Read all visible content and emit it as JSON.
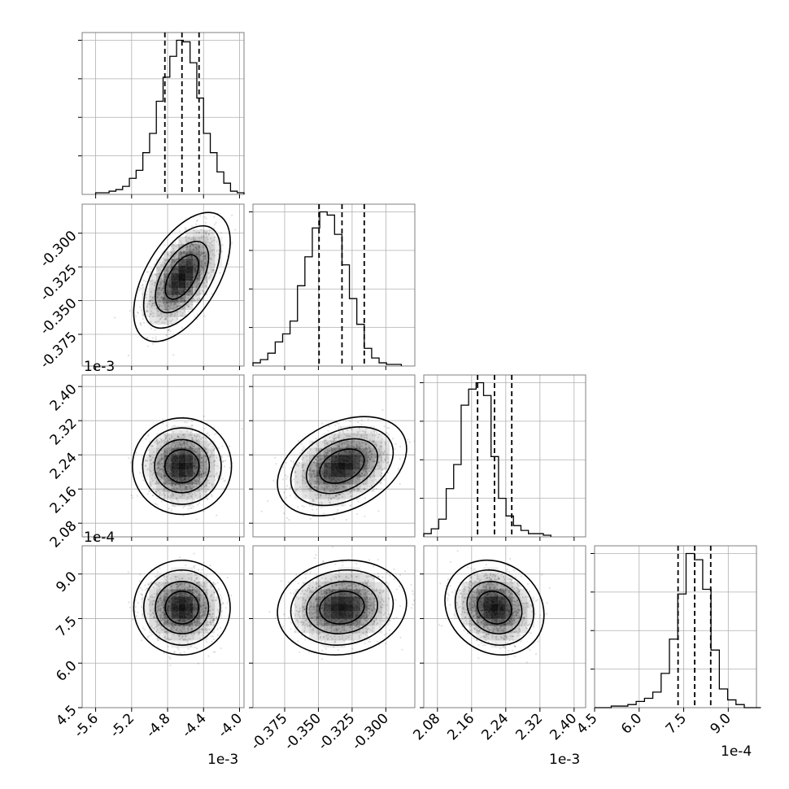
{
  "chart_data": {
    "type": "corner",
    "grid": true,
    "ticks": {
      "p0": [
        "-5.6",
        "-5.2",
        "-4.8",
        "-4.4",
        "-4.0"
      ],
      "p1": [
        "-0.375",
        "-0.350",
        "-0.325",
        "-0.300"
      ],
      "p2": [
        "2.08",
        "2.16",
        "2.24",
        "2.32",
        "2.40"
      ],
      "p3": [
        "4.5",
        "6.0",
        "7.5",
        "9.0"
      ]
    },
    "offsets": {
      "x0": "1e-3",
      "x2": "1e-3",
      "x3": "1e-4",
      "y2": "1e-3",
      "y3": "1e-4"
    },
    "parameters": [
      {
        "range": [
          -5.75,
          -3.95
        ],
        "ticks": [
          -5.6,
          -5.2,
          -4.8,
          -4.4,
          -4.0
        ],
        "quantiles": [
          -4.83,
          -4.64,
          -4.45
        ],
        "hist": {
          "edges_start": -5.6,
          "bin_width": 0.075,
          "counts": [
            1,
            1,
            2,
            3,
            5,
            10,
            15,
            26,
            38,
            58,
            73,
            86,
            96,
            95,
            82,
            60,
            38,
            26,
            14,
            7,
            2,
            1
          ]
        }
      },
      {
        "range": [
          -0.3985,
          -0.2785
        ],
        "ticks": [
          -0.375,
          -0.35,
          -0.325,
          -0.3
        ],
        "quantiles": [
          -0.3495,
          -0.3325,
          -0.316
        ],
        "hist": {
          "edges_start": -0.3985,
          "bin_width": 0.0055,
          "counts": [
            2,
            4,
            8,
            15,
            20,
            28,
            50,
            68,
            86,
            96,
            94,
            82,
            63,
            42,
            26,
            11,
            5,
            2,
            1,
            1
          ]
        }
      },
      {
        "range": [
          2.048,
          2.427
        ],
        "ticks": [
          2.08,
          2.16,
          2.24,
          2.32,
          2.4
        ],
        "quantiles": [
          2.174,
          2.2135,
          2.254
        ],
        "hist": {
          "edges_start": 2.048,
          "bin_width": 0.0175,
          "counts": [
            2,
            5,
            11,
            30,
            45,
            82,
            92,
            96,
            88,
            50,
            24,
            13,
            7,
            4,
            2,
            2,
            1
          ]
        }
      },
      {
        "range": [
          4.5,
          9.95
        ],
        "ticks": [
          4.5,
          6.0,
          7.5,
          9.0
        ],
        "quantiles": [
          7.31,
          7.87,
          8.41
        ],
        "hist": {
          "edges_start": 4.5,
          "bin_width": 0.28,
          "counts": [
            0,
            0,
            1,
            1,
            2,
            4,
            6,
            10,
            22,
            44,
            73,
            99,
            95,
            76,
            37,
            12,
            5,
            2,
            0,
            0
          ]
        }
      }
    ],
    "pairs": [
      {
        "row": 1,
        "col": 0,
        "mean": [
          -4.64,
          -0.3325
        ],
        "std": [
          0.185,
          0.0165
        ],
        "rho": 0.55
      },
      {
        "row": 2,
        "col": 0,
        "mean": [
          -4.64,
          2.2135
        ],
        "std": [
          0.185,
          0.04
        ],
        "rho": 0.0
      },
      {
        "row": 2,
        "col": 1,
        "mean": [
          -0.3325,
          2.2135
        ],
        "std": [
          0.0165,
          0.04
        ],
        "rho": 0.35
      },
      {
        "row": 3,
        "col": 0,
        "mean": [
          -4.64,
          7.87
        ],
        "std": [
          0.185,
          0.55
        ],
        "rho": 0.0
      },
      {
        "row": 3,
        "col": 1,
        "mean": [
          -0.3325,
          7.87
        ],
        "std": [
          0.0165,
          0.55
        ],
        "rho": 0.1
      },
      {
        "row": 3,
        "col": 2,
        "mean": [
          2.2135,
          7.87
        ],
        "std": [
          0.04,
          0.55
        ],
        "rho": -0.15
      }
    ],
    "contour_levels_sigma": [
      1.0,
      1.6,
      2.3,
      2.9
    ]
  }
}
